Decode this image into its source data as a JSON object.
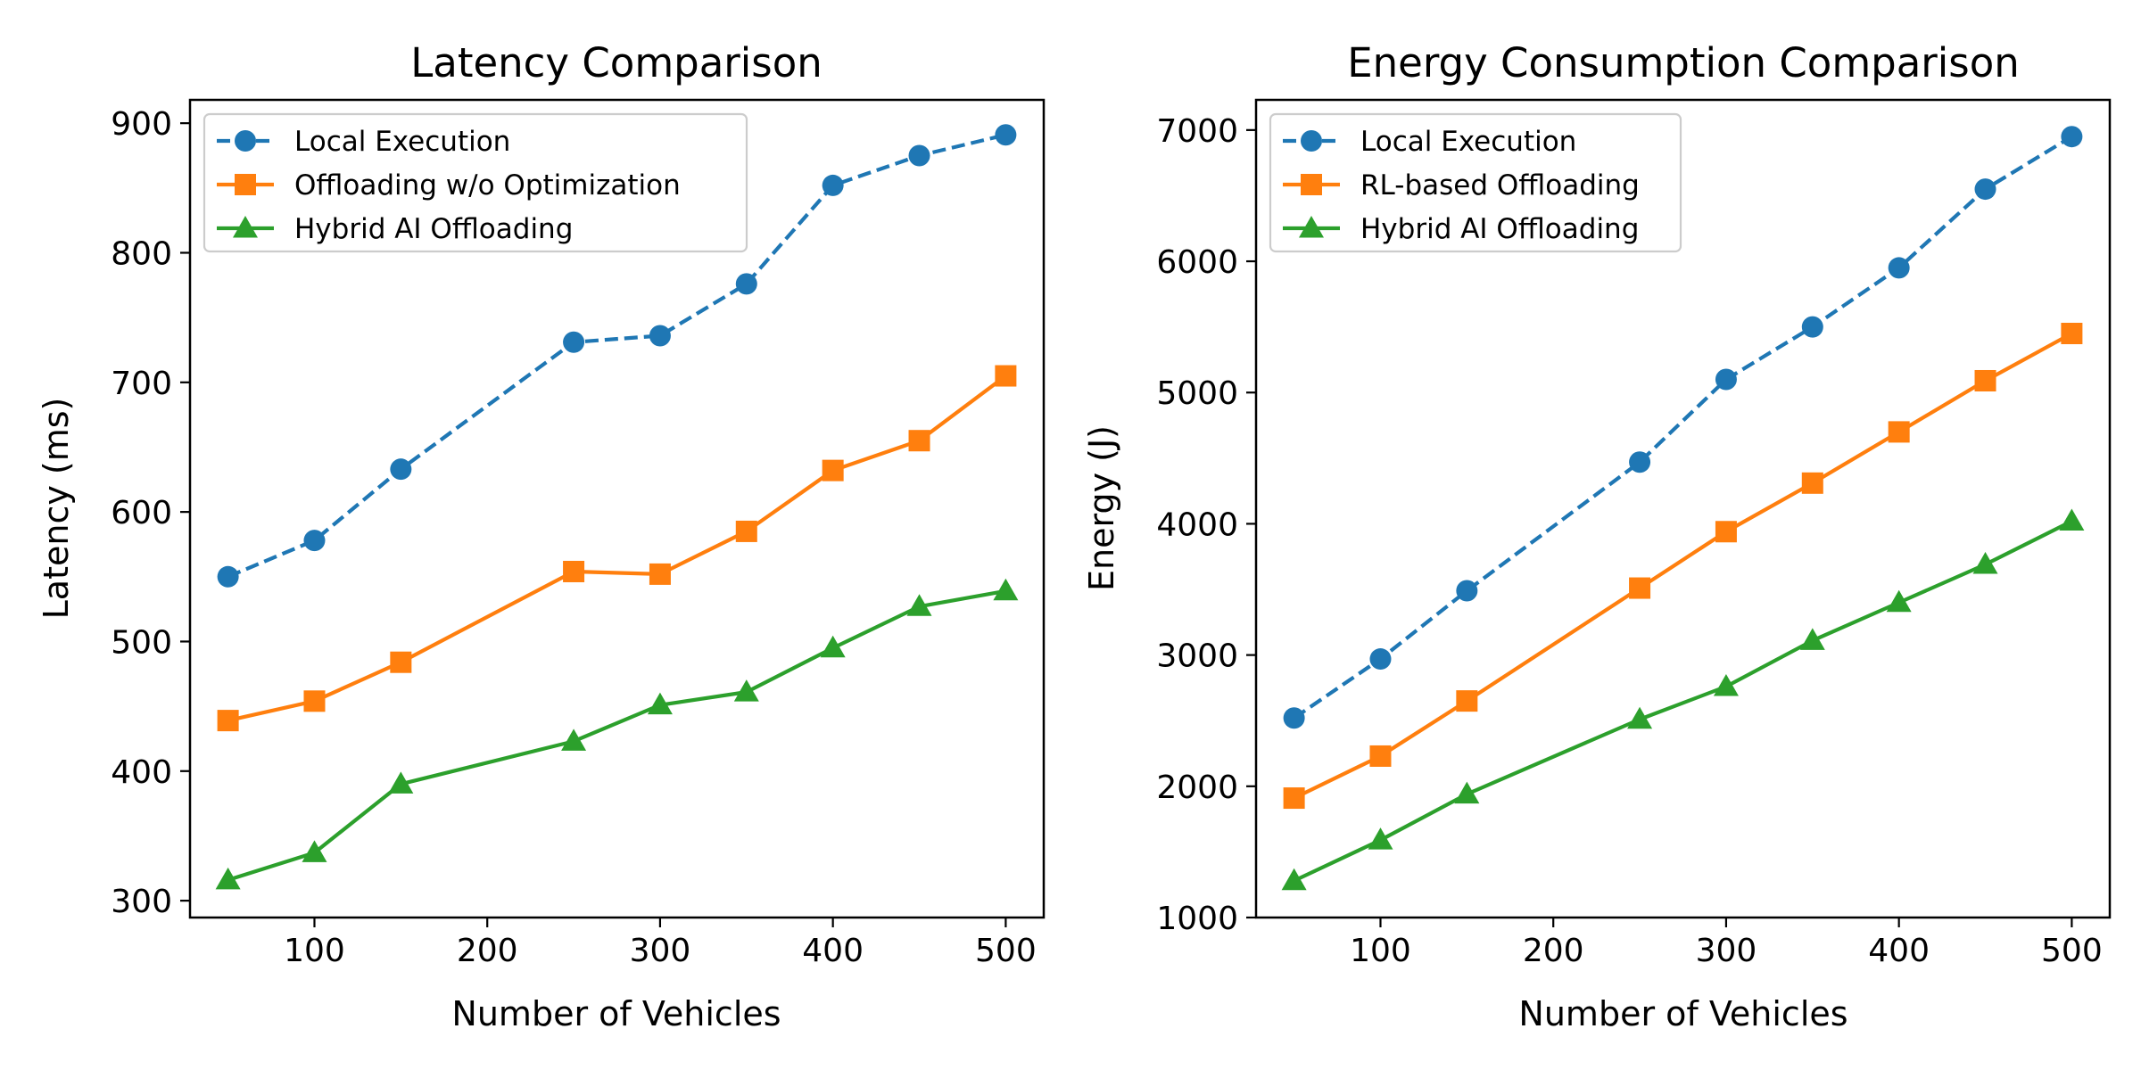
{
  "colors": {
    "local": "#1f77b4",
    "offload": "#ff7f0e",
    "hybrid": "#2ca02c",
    "axis": "#000000",
    "legend_border": "#cccccc"
  },
  "chart_data": [
    {
      "type": "line",
      "title": "Latency Comparison",
      "xlabel": "Number of Vehicles",
      "ylabel": "Latency (ms)",
      "xlim": [
        28,
        522
      ],
      "ylim": [
        287,
        918
      ],
      "xticks": [
        100,
        200,
        300,
        400,
        500
      ],
      "xtick_labels": [
        "100",
        "200",
        "300",
        "400",
        "500"
      ],
      "yticks": [
        300,
        400,
        500,
        600,
        700,
        800,
        900
      ],
      "ytick_labels": [
        "300",
        "400",
        "500",
        "600",
        "700",
        "800",
        "900"
      ],
      "legend_position": "upper-left",
      "x": [
        50,
        100,
        150,
        250,
        300,
        350,
        400,
        450,
        500
      ],
      "series": [
        {
          "name": "Local Execution",
          "color_key": "local",
          "marker": "circle",
          "dashed": true,
          "values": [
            550,
            578,
            633,
            731,
            736,
            776,
            852,
            875,
            891
          ]
        },
        {
          "name": "Offloading w/o Optimization",
          "color_key": "offload",
          "marker": "square",
          "dashed": false,
          "values": [
            439,
            454,
            484,
            554,
            552,
            585,
            632,
            655,
            705
          ]
        },
        {
          "name": "Hybrid AI Offloading",
          "color_key": "hybrid",
          "marker": "triangle",
          "dashed": false,
          "values": [
            316,
            337,
            390,
            423,
            451,
            461,
            495,
            527,
            539
          ]
        }
      ]
    },
    {
      "type": "line",
      "title": "Energy Consumption Comparison",
      "xlabel": "Number of Vehicles",
      "ylabel": "Energy (J)",
      "xlim": [
        28,
        522
      ],
      "ylim": [
        1000,
        7230
      ],
      "xticks": [
        100,
        200,
        300,
        400,
        500
      ],
      "xtick_labels": [
        "100",
        "200",
        "300",
        "400",
        "500"
      ],
      "yticks": [
        1000,
        2000,
        3000,
        4000,
        5000,
        6000,
        7000
      ],
      "ytick_labels": [
        "1000",
        "2000",
        "3000",
        "4000",
        "5000",
        "6000",
        "7000"
      ],
      "legend_position": "upper-left",
      "x": [
        50,
        100,
        150,
        250,
        300,
        350,
        400,
        450,
        500
      ],
      "series": [
        {
          "name": "Local Execution",
          "color_key": "local",
          "marker": "circle",
          "dashed": true,
          "values": [
            2520,
            2970,
            3490,
            4470,
            5100,
            5500,
            5950,
            6550,
            6950
          ]
        },
        {
          "name": "RL-based Offloading",
          "color_key": "offload",
          "marker": "square",
          "dashed": false,
          "values": [
            1910,
            2230,
            2650,
            3510,
            3940,
            4310,
            4700,
            5090,
            5450
          ]
        },
        {
          "name": "Hybrid AI Offloading",
          "color_key": "hybrid",
          "marker": "triangle",
          "dashed": false,
          "values": [
            1280,
            1590,
            1940,
            2510,
            2760,
            3110,
            3400,
            3690,
            4020
          ]
        }
      ]
    }
  ]
}
